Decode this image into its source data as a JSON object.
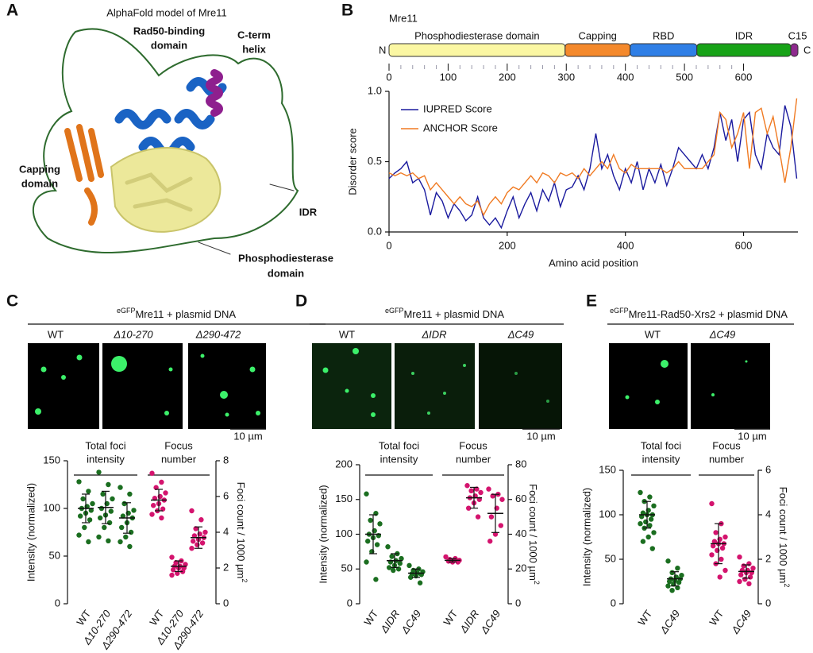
{
  "panel_labels": [
    "A",
    "B",
    "C",
    "D",
    "E"
  ],
  "panel_a": {
    "title": "AlphaFold model of Mre11",
    "rad50_label": [
      "Rad50-binding",
      "domain"
    ],
    "cterm_label": [
      "C-term",
      "helix"
    ],
    "capping_label": [
      "Capping",
      "domain"
    ],
    "idr_label": "IDR",
    "pde_label": [
      "Phosphodiesterase",
      "domain"
    ]
  },
  "domain_map": {
    "protein": "Mre11",
    "n_label": "N",
    "c_label": "C",
    "xlim": [
      0,
      692
    ],
    "xticks": [
      0,
      100,
      200,
      300,
      400,
      500,
      600
    ],
    "domains": [
      {
        "name": "Phosphodiesterase domain",
        "start": 0,
        "end": 298,
        "color": "#fbf7a3"
      },
      {
        "name": "Capping",
        "start": 298,
        "end": 408,
        "color": "#f4892c"
      },
      {
        "name": "RBD",
        "start": 408,
        "end": 521,
        "color": "#2f7fe6"
      },
      {
        "name": "IDR",
        "start": 521,
        "end": 680,
        "color": "#17a317"
      },
      {
        "name": "C15",
        "start": 680,
        "end": 692,
        "color": "#8e2a8e"
      }
    ]
  },
  "microscopy": {
    "C": {
      "header_sup": "eGFP",
      "header": "Mre11 + plasmid DNA",
      "columns": [
        "WT",
        "Δ10-270",
        "Δ290-472"
      ],
      "scale": "10 µm"
    },
    "D": {
      "header_sup": "eGFP",
      "header": "Mre11 + plasmid DNA",
      "columns": [
        "WT",
        "ΔIDR",
        "ΔC49"
      ],
      "scale": "10 µm"
    },
    "E": {
      "header_sup": "eGFP",
      "header": "Mre11-Rad50-Xrs2 + plasmid DNA",
      "columns": [
        "WT",
        "ΔC49"
      ],
      "scale": "10 µm"
    }
  },
  "chart_data": [
    {
      "type": "line",
      "xlabel": "Amino acid position",
      "ylabel": "Disorder score",
      "xlim": [
        0,
        692
      ],
      "ylim": [
        0,
        1
      ],
      "xticks": [
        0,
        200,
        400,
        600
      ],
      "yticks": [
        {
          "value": 0,
          "label": "0.0"
        },
        {
          "value": 0.5,
          "label": "0.5"
        },
        {
          "value": 1,
          "label": "1.0"
        }
      ],
      "x": [
        0,
        10,
        20,
        30,
        40,
        50,
        60,
        70,
        80,
        90,
        100,
        110,
        120,
        130,
        140,
        150,
        160,
        170,
        180,
        190,
        200,
        210,
        220,
        230,
        240,
        250,
        260,
        270,
        280,
        290,
        300,
        310,
        320,
        330,
        340,
        350,
        360,
        370,
        380,
        390,
        400,
        410,
        420,
        430,
        440,
        450,
        460,
        470,
        480,
        490,
        500,
        510,
        520,
        530,
        540,
        550,
        560,
        570,
        580,
        590,
        600,
        610,
        620,
        630,
        640,
        650,
        660,
        670,
        680,
        690
      ],
      "series": [
        {
          "name": "IUPRED Score",
          "color": "#1a1a9e",
          "values": [
            0.38,
            0.42,
            0.45,
            0.5,
            0.35,
            0.38,
            0.3,
            0.12,
            0.28,
            0.22,
            0.1,
            0.2,
            0.15,
            0.08,
            0.12,
            0.25,
            0.1,
            0.05,
            0.1,
            0.03,
            0.15,
            0.25,
            0.1,
            0.2,
            0.28,
            0.15,
            0.3,
            0.22,
            0.35,
            0.18,
            0.3,
            0.32,
            0.4,
            0.3,
            0.45,
            0.7,
            0.45,
            0.55,
            0.4,
            0.3,
            0.45,
            0.35,
            0.5,
            0.3,
            0.45,
            0.35,
            0.48,
            0.33,
            0.45,
            0.6,
            0.55,
            0.5,
            0.45,
            0.55,
            0.45,
            0.6,
            0.85,
            0.65,
            0.8,
            0.5,
            0.8,
            0.85,
            0.55,
            0.45,
            0.7,
            0.6,
            0.55,
            0.9,
            0.75,
            0.38
          ]
        },
        {
          "name": "ANCHOR Score",
          "color": "#f07a22",
          "values": [
            0.42,
            0.4,
            0.42,
            0.4,
            0.42,
            0.38,
            0.4,
            0.3,
            0.35,
            0.3,
            0.25,
            0.2,
            0.25,
            0.2,
            0.18,
            0.22,
            0.12,
            0.2,
            0.25,
            0.2,
            0.28,
            0.32,
            0.3,
            0.35,
            0.4,
            0.35,
            0.42,
            0.4,
            0.35,
            0.42,
            0.4,
            0.42,
            0.38,
            0.45,
            0.4,
            0.45,
            0.5,
            0.45,
            0.55,
            0.45,
            0.42,
            0.48,
            0.45,
            0.45,
            0.45,
            0.45,
            0.45,
            0.42,
            0.45,
            0.5,
            0.45,
            0.45,
            0.45,
            0.45,
            0.5,
            0.55,
            0.85,
            0.8,
            0.6,
            0.7,
            0.85,
            0.45,
            0.85,
            0.88,
            0.7,
            0.82,
            0.6,
            0.35,
            0.6,
            0.95
          ]
        }
      ]
    },
    {
      "type": "dotplot",
      "ylabel": "Intensity (normalized)",
      "ylim": [
        0,
        150
      ],
      "yticks": [
        0,
        50,
        100,
        150
      ],
      "y2label": "Foci count / 1000 µm",
      "y2label_sup": "2",
      "y2lim": [
        0,
        8
      ],
      "y2ticks": [
        0,
        2,
        4,
        6,
        8
      ],
      "group_headers": [
        [
          "Total foci",
          "intensity"
        ],
        [
          "Focus",
          "number"
        ]
      ],
      "groups": [
        {
          "category": "WT",
          "axis": "y",
          "color": "#1b6e20",
          "points": [
            128,
            118,
            110,
            105,
            102,
            100,
            98,
            95,
            92,
            88,
            80,
            72,
            65
          ],
          "mean": 100,
          "sd": 15
        },
        {
          "category": "Δ10-270",
          "axis": "y",
          "color": "#1b6e20",
          "points": [
            138,
            125,
            115,
            110,
            105,
            100,
            97,
            93,
            90,
            85,
            80,
            70,
            66
          ],
          "mean": 101,
          "sd": 17
        },
        {
          "category": "Δ290-472",
          "axis": "y",
          "color": "#1b6e20",
          "points": [
            122,
            115,
            105,
            98,
            95,
            92,
            90,
            85,
            80,
            75,
            70,
            65,
            60
          ],
          "mean": 90,
          "sd": 16
        },
        {
          "category": "WT",
          "axis": "y2",
          "color": "#d4146e",
          "points": [
            7.3,
            6.8,
            6.5,
            6.2,
            6.0,
            5.9,
            5.8,
            5.6,
            5.5,
            5.3,
            5.2,
            5.0,
            4.8
          ],
          "mean": 5.8,
          "sd": 0.6
        },
        {
          "category": "Δ10-270",
          "axis": "y2",
          "color": "#d4146e",
          "points": [
            2.6,
            2.4,
            2.3,
            2.2,
            2.1,
            2.1,
            2.0,
            2.0,
            1.9,
            1.8,
            1.7,
            1.6
          ],
          "mean": 2.1,
          "sd": 0.3
        },
        {
          "category": "Δ290-472",
          "axis": "y2",
          "color": "#d4146e",
          "points": [
            5.2,
            4.7,
            4.2,
            4.0,
            3.9,
            3.8,
            3.7,
            3.6,
            3.5,
            3.4,
            3.3,
            3.1
          ],
          "mean": 3.7,
          "sd": 0.6
        }
      ]
    },
    {
      "type": "dotplot",
      "ylabel": "Intensity (normalized)",
      "ylim": [
        0,
        200
      ],
      "yticks": [
        0,
        50,
        100,
        150,
        200
      ],
      "y2label": "Foci count / 1000 µm",
      "y2label_sup": "2",
      "y2lim": [
        0,
        80
      ],
      "y2ticks": [
        0,
        20,
        40,
        60,
        80
      ],
      "group_headers": [
        [
          "Total foci",
          "intensity"
        ],
        [
          "Focus",
          "number"
        ]
      ],
      "groups": [
        {
          "category": "WT",
          "axis": "y",
          "color": "#1b6e20",
          "points": [
            158,
            130,
            120,
            115,
            105,
            100,
            98,
            95,
            90,
            85,
            75,
            60,
            35
          ],
          "mean": 100,
          "sd": 28
        },
        {
          "category": "ΔIDR",
          "axis": "y",
          "color": "#1b6e20",
          "points": [
            82,
            72,
            68,
            65,
            62,
            60,
            58,
            55,
            52,
            50,
            48
          ],
          "mean": 62,
          "sd": 10
        },
        {
          "category": "ΔC49",
          "axis": "y",
          "color": "#1b6e20",
          "points": [
            55,
            50,
            48,
            46,
            44,
            43,
            42,
            40,
            38,
            30
          ],
          "mean": 44,
          "sd": 6
        },
        {
          "category": "WT",
          "axis": "y2",
          "color": "#d4146e",
          "points": [
            27,
            26,
            25.5,
            25,
            25,
            24.5,
            24,
            24
          ],
          "mean": 25,
          "sd": 1
        },
        {
          "category": "ΔIDR",
          "axis": "y2",
          "color": "#d4146e",
          "points": [
            68,
            66,
            65,
            64,
            62,
            61,
            60,
            58,
            55,
            50
          ],
          "mean": 61,
          "sd": 6
        },
        {
          "category": "ΔC49",
          "axis": "y2",
          "color": "#d4146e",
          "points": [
            66,
            63,
            62,
            60,
            55,
            50,
            45,
            40,
            36
          ],
          "mean": 52,
          "sd": 11
        }
      ]
    },
    {
      "type": "dotplot",
      "ylabel": "Intensity (normalized)",
      "ylim": [
        0,
        150
      ],
      "yticks": [
        0,
        50,
        100,
        150
      ],
      "y2label": "Foci count / 1000 µm",
      "y2label_sup": "2",
      "y2lim": [
        0,
        6
      ],
      "y2ticks": [
        0,
        2,
        4,
        6
      ],
      "group_headers": [
        [
          "Total foci",
          "intensity"
        ],
        [
          "Focus",
          "number"
        ]
      ],
      "groups": [
        {
          "category": "WT",
          "axis": "y",
          "color": "#1b6e20",
          "points": [
            125,
            120,
            115,
            110,
            105,
            102,
            100,
            100,
            98,
            95,
            92,
            90,
            88,
            85,
            80,
            75,
            70,
            62
          ],
          "mean": 100,
          "sd": 15
        },
        {
          "category": "ΔC49",
          "axis": "y",
          "color": "#1b6e20",
          "points": [
            48,
            40,
            35,
            32,
            30,
            28,
            28,
            26,
            25,
            24,
            22,
            20,
            18,
            15
          ],
          "mean": 28,
          "sd": 8
        },
        {
          "category": "WT",
          "axis": "y2",
          "color": "#d4146e",
          "points": [
            4.5,
            3.6,
            3.2,
            3.0,
            2.9,
            2.8,
            2.7,
            2.7,
            2.6,
            2.5,
            2.4,
            2.2,
            2.0,
            1.8,
            1.5,
            1.2
          ],
          "mean": 2.7,
          "sd": 0.9
        },
        {
          "category": "ΔC49",
          "axis": "y2",
          "color": "#d4146e",
          "points": [
            2.1,
            1.8,
            1.7,
            1.6,
            1.5,
            1.5,
            1.4,
            1.4,
            1.3,
            1.2,
            1.1,
            1.0,
            0.9
          ],
          "mean": 1.45,
          "sd": 0.3
        }
      ]
    }
  ]
}
